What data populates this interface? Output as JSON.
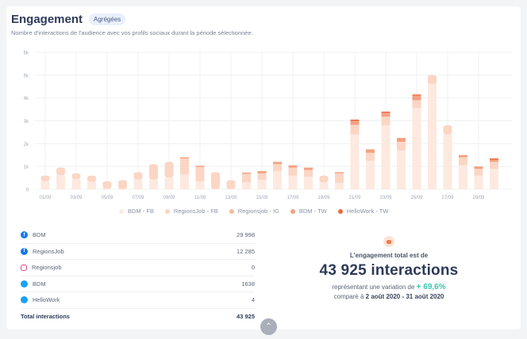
{
  "header": {
    "title": "Engagement",
    "badge": "Agrégées",
    "subtitle": "Nombre d'interactions de l'audience avec vos profils sociaux durant la période sélectionnée."
  },
  "colors": {
    "bdm_fb": "#fde9df",
    "regionsjob_fb": "#fbd6c4",
    "regionsjob_ig": "#f8b9a0",
    "bdm_tw": "#f3a183",
    "hellowork_tw": "#ec6a3c",
    "accent_green": "#3cc4b0",
    "title_navy": "#2e3a59"
  },
  "chart_data": {
    "type": "bar",
    "stacked": true,
    "title": "",
    "xlabel": "",
    "ylabel": "",
    "ylim": [
      0,
      6000
    ],
    "yticks": [
      "0",
      "1k",
      "2k",
      "3k",
      "4k",
      "5k",
      "6k"
    ],
    "grid": true,
    "legend_position": "bottom",
    "categories": [
      "01/09",
      "02/09",
      "03/09",
      "04/09",
      "05/09",
      "06/09",
      "07/09",
      "08/09",
      "09/09",
      "10/09",
      "11/09",
      "12/09",
      "13/09",
      "14/09",
      "15/09",
      "16/09",
      "17/09",
      "18/09",
      "19/09",
      "20/09",
      "21/09",
      "22/09",
      "23/09",
      "24/09",
      "25/09",
      "26/09",
      "27/09",
      "28/09",
      "29/09",
      "30/09"
    ],
    "xtick_labels": [
      "01/09",
      "03/09",
      "05/09",
      "07/09",
      "09/09",
      "11/09",
      "13/09",
      "15/09",
      "17/09",
      "19/09",
      "21/09",
      "23/09",
      "25/09",
      "27/09",
      "29/09"
    ],
    "series": [
      {
        "name": "BDM - FB",
        "color_key": "bdm_fb",
        "values": [
          350,
          620,
          450,
          320,
          40,
          20,
          430,
          420,
          520,
          650,
          350,
          20,
          20,
          300,
          420,
          800,
          600,
          550,
          300,
          280,
          2400,
          1250,
          2800,
          1700,
          3550,
          4600,
          2400,
          1050,
          600,
          900
        ]
      },
      {
        "name": "RegionsJob - FB",
        "color_key": "regionsjob_fb",
        "values": [
          250,
          330,
          250,
          280,
          310,
          380,
          320,
          680,
          680,
          700,
          630,
          730,
          380,
          380,
          280,
          300,
          350,
          300,
          300,
          420,
          420,
          350,
          380,
          380,
          350,
          400,
          400,
          350,
          300,
          300
        ]
      },
      {
        "name": "Regionsjob - IG",
        "color_key": "regionsjob_ig",
        "values": [
          0,
          0,
          0,
          0,
          0,
          0,
          0,
          0,
          0,
          0,
          0,
          0,
          0,
          0,
          0,
          0,
          0,
          0,
          0,
          0,
          0,
          0,
          0,
          0,
          0,
          0,
          0,
          0,
          0,
          0
        ]
      },
      {
        "name": "BDM - TW",
        "color_key": "bdm_tw",
        "values": [
          0,
          0,
          0,
          0,
          0,
          0,
          0,
          0,
          0,
          50,
          20,
          0,
          0,
          40,
          100,
          100,
          100,
          100,
          0,
          20,
          180,
          150,
          170,
          170,
          200,
          0,
          0,
          100,
          100,
          100
        ]
      },
      {
        "name": "HelloWork - TW",
        "color_key": "hellowork_tw",
        "values": [
          0,
          0,
          0,
          0,
          0,
          0,
          0,
          0,
          0,
          0,
          0,
          0,
          0,
          0,
          0,
          0,
          0,
          0,
          0,
          0,
          1,
          0,
          1,
          0,
          1,
          0,
          0,
          0,
          0,
          1
        ]
      }
    ]
  },
  "legend": [
    {
      "label": "BDM - FB",
      "color_key": "bdm_fb"
    },
    {
      "label": "RegionsJob - FB",
      "color_key": "regionsjob_fb"
    },
    {
      "label": "Regionsjob - IG",
      "color_key": "regionsjob_ig"
    },
    {
      "label": "BDM - TW",
      "color_key": "bdm_tw"
    },
    {
      "label": "HelloWork - TW",
      "color_key": "hellowork_tw"
    }
  ],
  "table": {
    "rows": [
      {
        "network": "facebook-icon",
        "name": "BDM",
        "value": "29 998"
      },
      {
        "network": "facebook-icon",
        "name": "RegionsJob",
        "value": "12 285"
      },
      {
        "network": "instagram-icon",
        "name": "Regionsjob",
        "value": "0"
      },
      {
        "network": "twitter-icon",
        "name": "BDM",
        "value": "1638"
      },
      {
        "network": "twitter-icon",
        "name": "HelloWork",
        "value": "4"
      }
    ],
    "total_label": "Total interactions",
    "total_value": "43 925"
  },
  "summary": {
    "icon": "chat-bubble-icon",
    "lead": "L'engagement total est de",
    "big": "43 925 interactions",
    "variation_prefix": "représentant une variation de",
    "variation_value": "+ 69,6%",
    "compare_prefix": "comparé à",
    "compare_period": "2 août 2020 - 31 août 2020"
  },
  "controls": {
    "collapse_icon": "chevron-up-icon"
  }
}
